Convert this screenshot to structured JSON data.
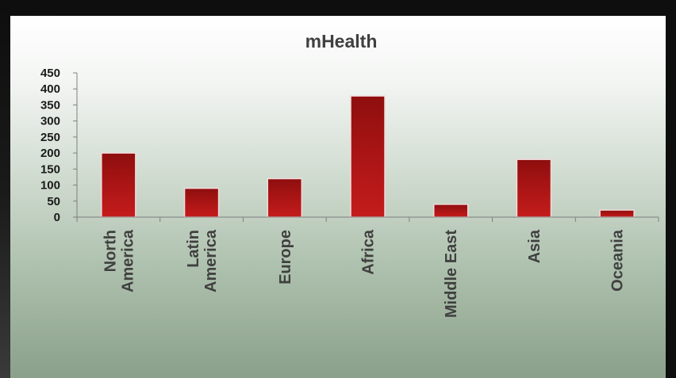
{
  "chart_data": {
    "type": "bar",
    "title": "mHealth",
    "categories": [
      [
        "North",
        "America"
      ],
      [
        "Latin",
        "America"
      ],
      [
        "Europe"
      ],
      [
        "Africa"
      ],
      [
        "Middle East"
      ],
      [
        "Asia"
      ],
      [
        "Oceania"
      ]
    ],
    "values": [
      200,
      90,
      120,
      378,
      40,
      180,
      22
    ],
    "ylim": [
      0,
      450
    ],
    "yticks": [
      0,
      50,
      100,
      150,
      200,
      250,
      300,
      350,
      400,
      450
    ],
    "xlabel": "",
    "ylabel": "",
    "grid": false,
    "legend": "none",
    "bar_color": "#b01818"
  }
}
